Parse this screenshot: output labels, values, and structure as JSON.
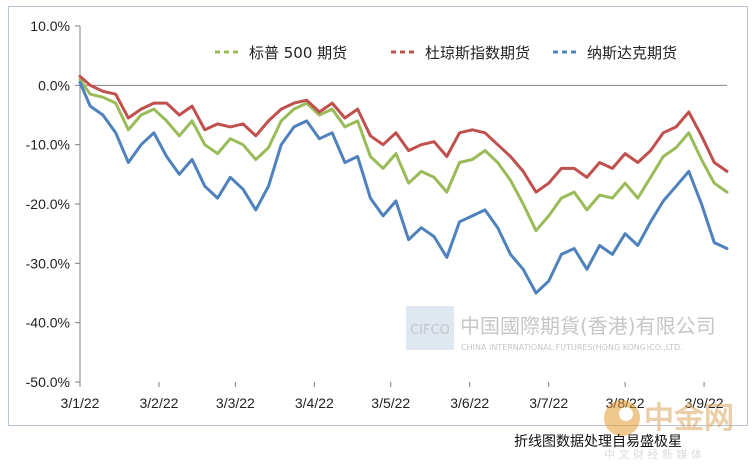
{
  "chart_data": {
    "type": "line",
    "x": [
      "2022-03-01",
      "2022-03-04",
      "2022-03-09",
      "2022-03-14",
      "2022-03-18",
      "2022-03-24",
      "2022-03-30",
      "2022-04-01",
      "2022-04-07",
      "2022-04-13",
      "2022-04-20",
      "2022-04-26",
      "2022-05-02",
      "2022-05-06",
      "2022-05-12",
      "2022-05-18",
      "2022-05-24",
      "2022-05-31",
      "2022-06-03",
      "2022-06-09",
      "2022-06-16",
      "2022-06-22",
      "2022-06-28",
      "2022-07-01",
      "2022-07-07",
      "2022-07-14",
      "2022-07-20",
      "2022-07-26",
      "2022-08-01",
      "2022-08-05",
      "2022-08-11",
      "2022-08-17",
      "2022-08-23",
      "2022-08-30",
      "2022-09-02",
      "2022-09-08",
      "2022-09-14",
      "2022-09-20",
      "2022-09-26",
      "2022-09-30"
    ],
    "xticks": [
      {
        "date": "2022-03-01",
        "label": "3/1/22"
      },
      {
        "date": "2022-04-01",
        "label": "3/2/22"
      },
      {
        "date": "2022-05-01",
        "label": "3/3/22"
      },
      {
        "date": "2022-06-01",
        "label": "3/4/22"
      },
      {
        "date": "2022-07-01",
        "label": "3/5/22"
      },
      {
        "date": "2022-08-01",
        "label": "3/6/22"
      },
      {
        "date": "2022-09-01",
        "label": "3/7/22"
      },
      {
        "date": "2022-10-01",
        "label": "3/8/22"
      },
      {
        "date": "2022-11-01",
        "label": "3/9/22"
      }
    ],
    "xlim": [
      "2022-03-01",
      "2022-11-10"
    ],
    "ylim": [
      -50,
      10
    ],
    "yticks": [
      10,
      0,
      -10,
      -20,
      -30,
      -40,
      -50
    ],
    "ytick_labels": [
      "10.0%",
      "0.0%",
      "-10.0%",
      "-20.0%",
      "-30.0%",
      "-40.0%",
      "-50.0%"
    ],
    "series": [
      {
        "name": "标普 500 期货",
        "color": "#9bbb59",
        "x": [
          "2022-03-01",
          "2022-03-05",
          "2022-03-10",
          "2022-03-15",
          "2022-03-20",
          "2022-03-25",
          "2022-03-30",
          "2022-04-04",
          "2022-04-09",
          "2022-04-14",
          "2022-04-19",
          "2022-04-24",
          "2022-04-29",
          "2022-05-04",
          "2022-05-09",
          "2022-05-14",
          "2022-05-19",
          "2022-05-24",
          "2022-05-29",
          "2022-06-03",
          "2022-06-08",
          "2022-06-13",
          "2022-06-18",
          "2022-06-23",
          "2022-06-28",
          "2022-07-03",
          "2022-07-08",
          "2022-07-13",
          "2022-07-18",
          "2022-07-23",
          "2022-07-28",
          "2022-08-02",
          "2022-08-07",
          "2022-08-12",
          "2022-08-17",
          "2022-08-22",
          "2022-08-27",
          "2022-09-01",
          "2022-09-06",
          "2022-09-11",
          "2022-09-16",
          "2022-09-21",
          "2022-09-26",
          "2022-10-01",
          "2022-10-06",
          "2022-10-11",
          "2022-10-16",
          "2022-10-21",
          "2022-10-26",
          "2022-10-31",
          "2022-11-05",
          "2022-11-10"
        ],
        "values": [
          1.0,
          -1.5,
          -2.0,
          -3.0,
          -7.5,
          -5.0,
          -4.0,
          -6.0,
          -8.5,
          -6.0,
          -10.0,
          -11.5,
          -9.0,
          -10.0,
          -12.5,
          -10.5,
          -6.0,
          -4.0,
          -3.0,
          -5.0,
          -4.0,
          -7.0,
          -6.0,
          -12.0,
          -14.0,
          -11.5,
          -16.5,
          -14.5,
          -15.5,
          -18.0,
          -13.0,
          -12.5,
          -11.0,
          -13.0,
          -16.0,
          -20.0,
          -24.5,
          -22.0,
          -19.0,
          -18.0,
          -21.0,
          -18.5,
          -19.0,
          -16.5,
          -19.0,
          -15.5,
          -12.0,
          -10.5,
          -8.0,
          -12.5,
          -16.5,
          -18.0
        ]
      },
      {
        "name": "杜琼斯指数期货",
        "color": "#c0504d",
        "x": [
          "2022-03-01",
          "2022-03-05",
          "2022-03-10",
          "2022-03-15",
          "2022-03-20",
          "2022-03-25",
          "2022-03-30",
          "2022-04-04",
          "2022-04-09",
          "2022-04-14",
          "2022-04-19",
          "2022-04-24",
          "2022-04-29",
          "2022-05-04",
          "2022-05-09",
          "2022-05-14",
          "2022-05-19",
          "2022-05-24",
          "2022-05-29",
          "2022-06-03",
          "2022-06-08",
          "2022-06-13",
          "2022-06-18",
          "2022-06-23",
          "2022-06-28",
          "2022-07-03",
          "2022-07-08",
          "2022-07-13",
          "2022-07-18",
          "2022-07-23",
          "2022-07-28",
          "2022-08-02",
          "2022-08-07",
          "2022-08-12",
          "2022-08-17",
          "2022-08-22",
          "2022-08-27",
          "2022-09-01",
          "2022-09-06",
          "2022-09-11",
          "2022-09-16",
          "2022-09-21",
          "2022-09-26",
          "2022-10-01",
          "2022-10-06",
          "2022-10-11",
          "2022-10-16",
          "2022-10-21",
          "2022-10-26",
          "2022-10-31",
          "2022-11-05",
          "2022-11-10"
        ],
        "values": [
          1.5,
          0.0,
          -1.0,
          -1.5,
          -5.5,
          -4.0,
          -3.0,
          -3.0,
          -5.0,
          -3.5,
          -7.5,
          -6.5,
          -7.0,
          -6.5,
          -8.5,
          -6.0,
          -4.0,
          -3.0,
          -2.5,
          -4.5,
          -3.0,
          -5.5,
          -4.0,
          -8.5,
          -10.0,
          -8.0,
          -11.0,
          -10.0,
          -9.5,
          -12.0,
          -8.0,
          -7.5,
          -8.0,
          -10.0,
          -12.0,
          -14.5,
          -18.0,
          -16.5,
          -14.0,
          -14.0,
          -15.5,
          -13.0,
          -14.0,
          -11.5,
          -13.0,
          -11.0,
          -8.0,
          -7.0,
          -4.5,
          -8.5,
          -13.0,
          -14.5
        ]
      },
      {
        "name": "纳斯达克期货",
        "color": "#4f81bd",
        "x": [
          "2022-03-01",
          "2022-03-05",
          "2022-03-10",
          "2022-03-15",
          "2022-03-20",
          "2022-03-25",
          "2022-03-30",
          "2022-04-04",
          "2022-04-09",
          "2022-04-14",
          "2022-04-19",
          "2022-04-24",
          "2022-04-29",
          "2022-05-04",
          "2022-05-09",
          "2022-05-14",
          "2022-05-19",
          "2022-05-24",
          "2022-05-29",
          "2022-06-03",
          "2022-06-08",
          "2022-06-13",
          "2022-06-18",
          "2022-06-23",
          "2022-06-28",
          "2022-07-03",
          "2022-07-08",
          "2022-07-13",
          "2022-07-18",
          "2022-07-23",
          "2022-07-28",
          "2022-08-02",
          "2022-08-07",
          "2022-08-12",
          "2022-08-17",
          "2022-08-22",
          "2022-08-27",
          "2022-09-01",
          "2022-09-06",
          "2022-09-11",
          "2022-09-16",
          "2022-09-21",
          "2022-09-26",
          "2022-10-01",
          "2022-10-06",
          "2022-10-11",
          "2022-10-16",
          "2022-10-21",
          "2022-10-26",
          "2022-10-31",
          "2022-11-05",
          "2022-11-10"
        ],
        "values": [
          0.5,
          -3.5,
          -5.0,
          -8.0,
          -13.0,
          -10.0,
          -8.0,
          -12.0,
          -15.0,
          -12.5,
          -17.0,
          -19.0,
          -15.5,
          -17.5,
          -21.0,
          -17.0,
          -10.0,
          -7.0,
          -6.0,
          -9.0,
          -8.0,
          -13.0,
          -12.0,
          -19.0,
          -22.0,
          -19.5,
          -26.0,
          -24.0,
          -25.5,
          -29.0,
          -23.0,
          -22.0,
          -21.0,
          -24.0,
          -28.5,
          -31.0,
          -35.0,
          -33.0,
          -28.5,
          -27.5,
          -31.0,
          -27.0,
          -28.5,
          -25.0,
          -27.0,
          -23.0,
          -19.5,
          -17.0,
          -14.5,
          -20.0,
          -26.5,
          -27.5
        ]
      }
    ],
    "legend_position": "top",
    "grid": false
  },
  "watermark": {
    "logo_text": "CIFCO",
    "company_cn": "中国國際期貨(香港)有限公司",
    "company_en": "CHINA INTERNATIONAL FUTURES(HONG KONG)CO.,LTD."
  },
  "brand": {
    "logo_text": "中金网",
    "slogan": "中 文 财 经 新 媒 体"
  },
  "caption": "折线图数据处理自易盛极星"
}
